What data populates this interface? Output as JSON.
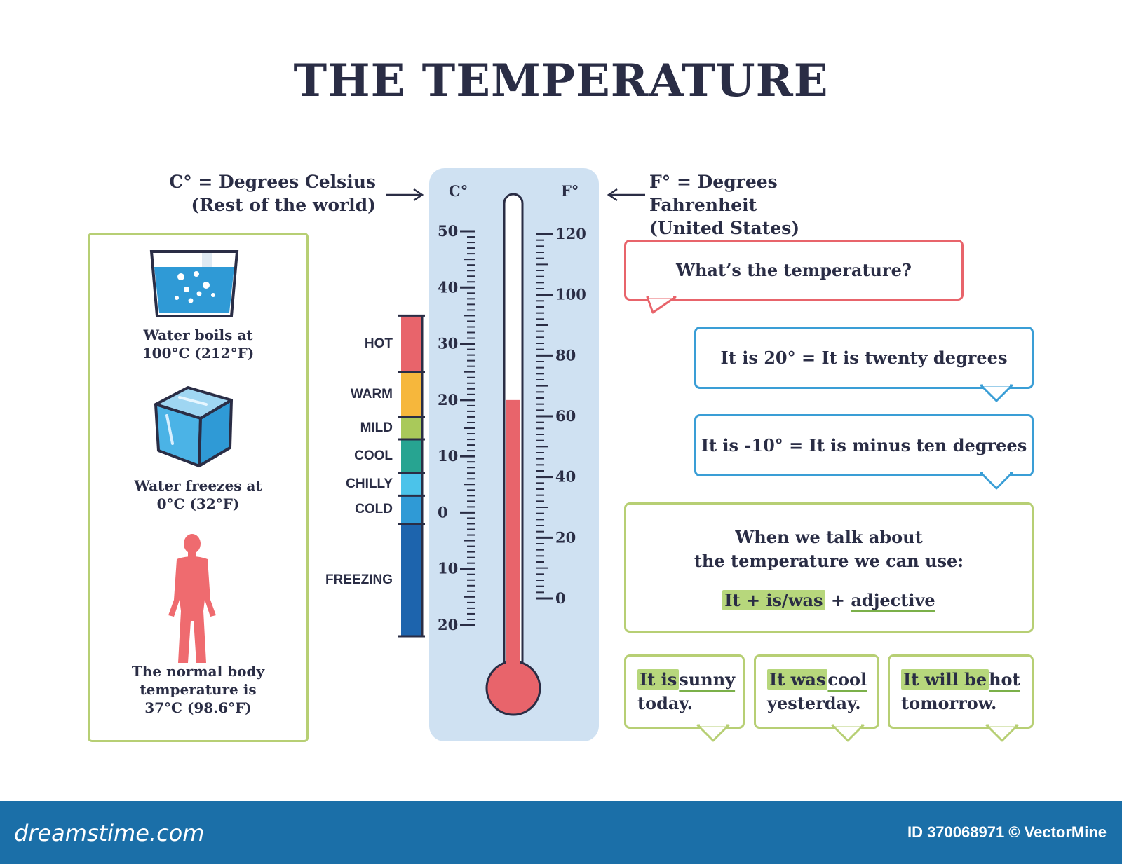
{
  "title": "THE TEMPERATURE",
  "celsius_note": {
    "line1": "C° = Degrees Celsius",
    "line2": "(Rest of the world)"
  },
  "fahrenheit_note": {
    "line1": "F° = Degrees Fahrenheit",
    "line2": "(United States)"
  },
  "left_panel": {
    "boil": {
      "line1": "Water boils at",
      "line2": "100°C (212°F)"
    },
    "freeze": {
      "line1": "Water freezes at",
      "line2": "0°C (32°F)"
    },
    "body": {
      "line1": "The normal body",
      "line2": "temperature is",
      "line3": "37°C (98.6°F)"
    }
  },
  "thermometer": {
    "c_header": "C°",
    "f_header": "F°",
    "reading_celsius": 20,
    "celsius_ticks": [
      "50",
      "40",
      "30",
      "20",
      "10",
      "0",
      "10",
      "20"
    ],
    "fahrenheit_ticks": [
      "120",
      "100",
      "80",
      "60",
      "40",
      "20",
      "0"
    ],
    "bands": [
      {
        "label": "HOT",
        "from": 35,
        "to": 25,
        "color": "#e8646b"
      },
      {
        "label": "WARM",
        "from": 25,
        "to": 17,
        "color": "#f6b73c"
      },
      {
        "label": "MILD",
        "from": 17,
        "to": 13,
        "color": "#a9c95a"
      },
      {
        "label": "COOL",
        "from": 13,
        "to": 7,
        "color": "#27a491"
      },
      {
        "label": "CHILLY",
        "from": 7,
        "to": 3,
        "color": "#4bc3ea"
      },
      {
        "label": "COLD",
        "from": 3,
        "to": -2,
        "color": "#2f9ad6"
      },
      {
        "label": "FREEZING",
        "from": -2,
        "to": -22,
        "color": "#1d64ad"
      }
    ],
    "colors": {
      "background": "#cfe1f2",
      "mercury": "#e8646b",
      "ink": "#2a2d45"
    }
  },
  "bubbles": {
    "question": "What’s the temperature?",
    "twenty": "It is 20° = It is twenty degrees",
    "minus_ten": "It is -10° = It is minus ten degrees",
    "grammar": {
      "line1": "When we talk about",
      "line2": "the temperature we can use:",
      "formula_hl": "It + is/was",
      "plus": "+",
      "adjective": "adjective"
    },
    "examples": [
      {
        "hl": "It is",
        "adj": "sunny",
        "rest": "today."
      },
      {
        "hl": "It was",
        "adj": "cool",
        "rest": "yesterday."
      },
      {
        "hl": "It will be",
        "adj": "hot",
        "rest": "tomorrow."
      }
    ]
  },
  "footer": {
    "site": "dreamstime.com",
    "credit": "ID 370068971 © VectorMine"
  }
}
